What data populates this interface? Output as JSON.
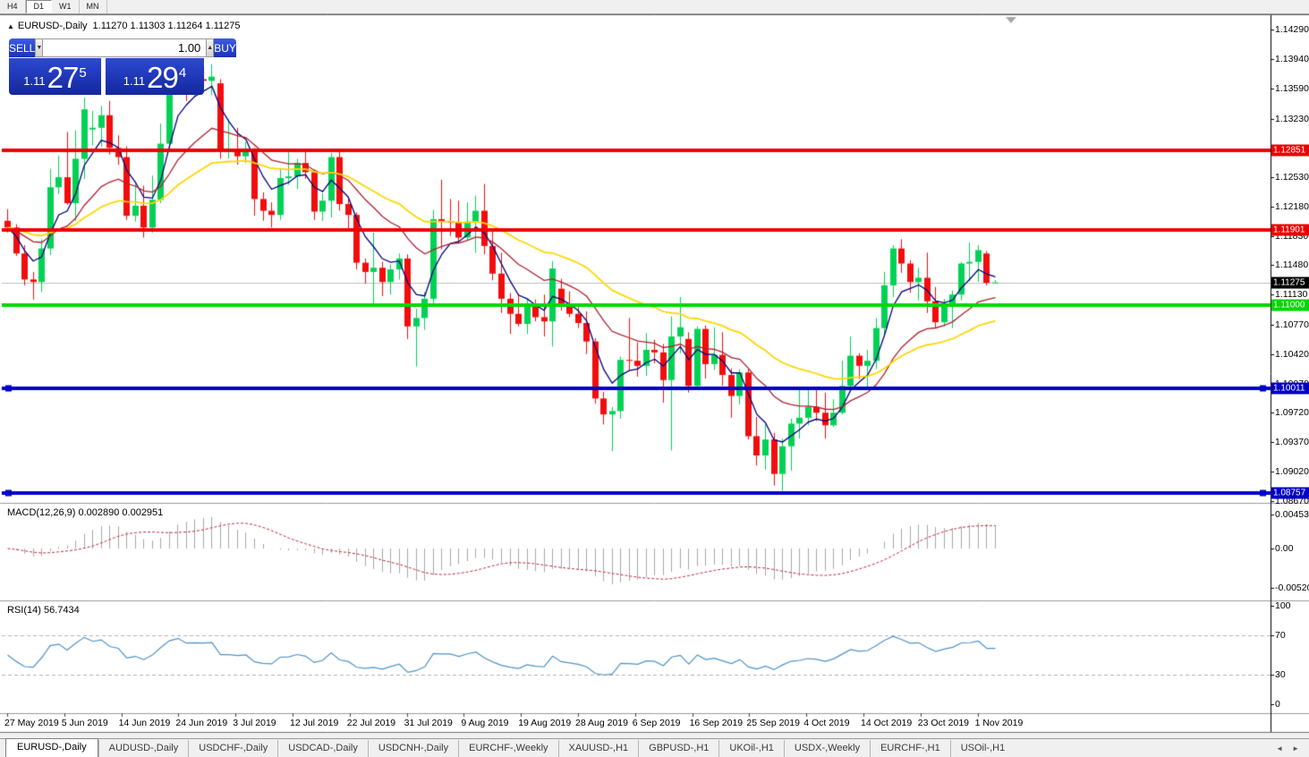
{
  "toolbar": {
    "timeframes": [
      {
        "label": "H4",
        "active": false
      },
      {
        "label": "D1",
        "active": true
      },
      {
        "label": "W1",
        "active": false
      },
      {
        "label": "MN",
        "active": false
      }
    ]
  },
  "chart": {
    "collapse_icon": "▲",
    "symbol_title": "EURUSD-,Daily",
    "ohlc_text": "1.11270 1.11303 1.11264 1.11275"
  },
  "trade_panel": {
    "sell_label": "SELL",
    "buy_label": "BUY",
    "volume": "1.00",
    "spinner_down_icon": "▼",
    "spinner_up_icon": "▲",
    "sell_prefix": "1.11",
    "sell_big": "27",
    "sell_sup": "5",
    "buy_prefix": "1.11",
    "buy_big": "29",
    "buy_sup": "4"
  },
  "price_axis": [
    "1.14290",
    "1.13940",
    "1.13590",
    "1.13230",
    "1.12530",
    "1.12180",
    "1.11830",
    "1.11480",
    "1.11130",
    "1.10770",
    "1.10420",
    "1.10070",
    "1.09720",
    "1.09370",
    "1.09020",
    "1.08670"
  ],
  "date_axis": [
    "27 May 2019",
    "5 Jun 2019",
    "14 Jun 2019",
    "24 Jun 2019",
    "3 Jul 2019",
    "12 Jul 2019",
    "22 Jul 2019",
    "31 Jul 2019",
    "9 Aug 2019",
    "19 Aug 2019",
    "28 Aug 2019",
    "6 Sep 2019",
    "16 Sep 2019",
    "25 Sep 2019",
    "4 Oct 2019",
    "14 Oct 2019",
    "23 Oct 2019",
    "1 Nov 2019"
  ],
  "current_price": {
    "value": 1.11275,
    "label": "1.11275"
  },
  "macd": {
    "label": "MACD(12,26,9) 0.002890 0.002951",
    "fast": 12,
    "slow": 26,
    "signal": 9,
    "value": 0.00289,
    "signal_value": 0.002951,
    "axis": [
      "0.004536",
      "0.00",
      "-0.005205"
    ],
    "range": [
      -0.005205,
      0.004536
    ]
  },
  "rsi": {
    "label": "RSI(14) 56.7434",
    "period": 14,
    "value": 56.7434,
    "axis": [
      "100",
      "70",
      "30",
      "0"
    ],
    "levels": [
      70,
      30
    ]
  },
  "tabs": [
    "EURUSD-,Daily",
    "AUDUSD-,Daily",
    "USDCHF-,Daily",
    "USDCAD-,Daily",
    "USDCNH-,Daily",
    "EURCHF-,Weekly",
    "XAUUSD-,H1",
    "GBPUSD-,H1",
    "UKOil-,H1",
    "USDX-,Weekly",
    "EURCHF-,H1",
    "USOil-,H1"
  ],
  "active_tab": 0,
  "tab_scroll": {
    "left_icon": "◄",
    "right_icon": "►"
  },
  "colors": {
    "bull": "#00d255",
    "bear": "#f20d0d",
    "ma_fast": "#000080",
    "ma_mid": "#b02030",
    "ma_slow": "#ffd700",
    "macd_hist": "#a6a6a6",
    "macd_signal": "#c52b3a",
    "rsi_line": "#4f93c9",
    "level_red": "#ee0000",
    "level_green": "#00d800",
    "level_blue": "#0000c8",
    "price_tag_bg": "#000000",
    "current_line": "#c0c0c0"
  },
  "chart_data": {
    "type": "candlestick",
    "symbol": "EURUSD",
    "timeframe": "Daily",
    "ylim": [
      1.0862,
      1.1444
    ],
    "grid": false,
    "shift_marker_x": 1130,
    "current_bar": {
      "open": 1.1127,
      "high": 1.11303,
      "low": 1.11264,
      "close": 1.11275
    },
    "levels": [
      {
        "price": 1.12851,
        "label": "1.12851",
        "color": "#ee0000",
        "width": 4,
        "handles": false
      },
      {
        "price": 1.11901,
        "label": "1.11901",
        "color": "#ee0000",
        "width": 4,
        "handles": false
      },
      {
        "price": 1.11,
        "label": "1.11000",
        "color": "#00d800",
        "width": 4,
        "handles": false
      },
      {
        "price": 1.10011,
        "label": "1.10011",
        "color": "#0000c8",
        "width": 4,
        "handles": true
      },
      {
        "price": 1.08757,
        "label": "1.08757",
        "color": "#0000c8",
        "width": 4,
        "handles": true
      }
    ],
    "moving_averages": [
      {
        "period": 5,
        "color": "#000080",
        "width": 1.3
      },
      {
        "period": 16,
        "color": "#b02030",
        "width": 1.3
      },
      {
        "period": 34,
        "color": "#ffd700",
        "width": 1.8
      }
    ],
    "indicators": {
      "macd": {
        "fast": 12,
        "slow": 26,
        "signal": 9,
        "current": [
          0.00289,
          0.002951
        ]
      },
      "rsi": {
        "period": 14,
        "current": 56.7434,
        "levels": [
          70,
          30
        ]
      }
    },
    "candles": [
      [
        "2019.05.27",
        1.1201,
        1.1215,
        1.1187,
        1.1193
      ],
      [
        "2019.05.28",
        1.1193,
        1.1197,
        1.1159,
        1.1162
      ],
      [
        "2019.05.29",
        1.1162,
        1.1172,
        1.1124,
        1.1131
      ],
      [
        "2019.05.30",
        1.1131,
        1.114,
        1.1107,
        1.1128
      ],
      [
        "2019.05.31",
        1.1128,
        1.1179,
        1.1116,
        1.1168
      ],
      [
        "2019.06.03",
        1.1168,
        1.1263,
        1.116,
        1.1241
      ],
      [
        "2019.06.04",
        1.1241,
        1.1279,
        1.1233,
        1.1253
      ],
      [
        "2019.06.05",
        1.1253,
        1.1307,
        1.122,
        1.1222
      ],
      [
        "2019.06.06",
        1.1222,
        1.1309,
        1.1201,
        1.1275
      ],
      [
        "2019.06.07",
        1.1275,
        1.1348,
        1.1251,
        1.1334
      ],
      [
        "2019.06.10",
        1.131,
        1.1332,
        1.1291,
        1.1312
      ],
      [
        "2019.06.11",
        1.1312,
        1.1338,
        1.1289,
        1.1327
      ],
      [
        "2019.06.12",
        1.1327,
        1.1344,
        1.128,
        1.1288
      ],
      [
        "2019.06.13",
        1.1288,
        1.1303,
        1.1268,
        1.1277
      ],
      [
        "2019.06.14",
        1.1277,
        1.129,
        1.1202,
        1.1207
      ],
      [
        "2019.06.17",
        1.1207,
        1.1248,
        1.12,
        1.1219
      ],
      [
        "2019.06.18",
        1.1219,
        1.1243,
        1.1181,
        1.1193
      ],
      [
        "2019.06.19",
        1.1193,
        1.1255,
        1.1187,
        1.1226
      ],
      [
        "2019.06.20",
        1.1226,
        1.1317,
        1.1222,
        1.1293
      ],
      [
        "2019.06.21",
        1.1293,
        1.1378,
        1.1285,
        1.1369
      ],
      [
        "2019.06.24",
        1.1369,
        1.1404,
        1.1362,
        1.1399
      ],
      [
        "2019.06.25",
        1.1399,
        1.1412,
        1.1344,
        1.1366
      ],
      [
        "2019.06.26",
        1.1366,
        1.138,
        1.135,
        1.137
      ],
      [
        "2019.06.27",
        1.137,
        1.1385,
        1.136,
        1.1368
      ],
      [
        "2019.06.28",
        1.1368,
        1.1388,
        1.1351,
        1.1373
      ],
      [
        "2019.07.01",
        1.1365,
        1.137,
        1.1275,
        1.1285
      ],
      [
        "2019.07.02",
        1.1285,
        1.1322,
        1.1275,
        1.1286
      ],
      [
        "2019.07.03",
        1.1286,
        1.1312,
        1.1268,
        1.1278
      ],
      [
        "2019.07.04",
        1.1278,
        1.1295,
        1.127,
        1.1283
      ],
      [
        "2019.07.05",
        1.1283,
        1.1288,
        1.1207,
        1.1227
      ],
      [
        "2019.07.08",
        1.1227,
        1.1235,
        1.1201,
        1.1213
      ],
      [
        "2019.07.09",
        1.1213,
        1.1223,
        1.1193,
        1.1208
      ],
      [
        "2019.07.10",
        1.1208,
        1.1264,
        1.1202,
        1.1252
      ],
      [
        "2019.07.11",
        1.1252,
        1.1286,
        1.1244,
        1.1254
      ],
      [
        "2019.07.12",
        1.1254,
        1.1275,
        1.1239,
        1.127
      ],
      [
        "2019.07.15",
        1.127,
        1.1285,
        1.1251,
        1.1259
      ],
      [
        "2019.07.16",
        1.1259,
        1.1262,
        1.1202,
        1.1212
      ],
      [
        "2019.07.17",
        1.1212,
        1.1234,
        1.1201,
        1.1225
      ],
      [
        "2019.07.18",
        1.1225,
        1.1282,
        1.1205,
        1.1277
      ],
      [
        "2019.07.19",
        1.1277,
        1.1283,
        1.1213,
        1.1221
      ],
      [
        "2019.07.22",
        1.1221,
        1.1227,
        1.1192,
        1.1208
      ],
      [
        "2019.07.23",
        1.1208,
        1.1211,
        1.1143,
        1.1151
      ],
      [
        "2019.07.24",
        1.1151,
        1.1156,
        1.1126,
        1.114
      ],
      [
        "2019.07.25",
        1.114,
        1.1187,
        1.1101,
        1.1145
      ],
      [
        "2019.07.26",
        1.1145,
        1.1152,
        1.1111,
        1.1128
      ],
      [
        "2019.07.29",
        1.1128,
        1.1149,
        1.1113,
        1.1143
      ],
      [
        "2019.07.30",
        1.1143,
        1.1162,
        1.1131,
        1.1156
      ],
      [
        "2019.07.31",
        1.1156,
        1.1161,
        1.106,
        1.1075
      ],
      [
        "2019.08.01",
        1.1075,
        1.1096,
        1.1027,
        1.1085
      ],
      [
        "2019.08.02",
        1.1085,
        1.1116,
        1.1071,
        1.1108
      ],
      [
        "2019.08.05",
        1.1108,
        1.1214,
        1.1101,
        1.1203
      ],
      [
        "2019.08.06",
        1.1203,
        1.125,
        1.1167,
        1.12
      ],
      [
        "2019.08.07",
        1.12,
        1.1227,
        1.1183,
        1.1199
      ],
      [
        "2019.08.08",
        1.1199,
        1.1225,
        1.1174,
        1.1181
      ],
      [
        "2019.08.09",
        1.1181,
        1.1223,
        1.1178,
        1.12
      ],
      [
        "2019.08.12",
        1.12,
        1.1231,
        1.1163,
        1.1213
      ],
      [
        "2019.08.13",
        1.1213,
        1.1245,
        1.1161,
        1.1171
      ],
      [
        "2019.08.14",
        1.1171,
        1.1192,
        1.113,
        1.1138
      ],
      [
        "2019.08.15",
        1.1138,
        1.1163,
        1.1091,
        1.1108
      ],
      [
        "2019.08.16",
        1.1108,
        1.1115,
        1.1066,
        1.109
      ],
      [
        "2019.08.19",
        1.109,
        1.1114,
        1.1075,
        1.1078
      ],
      [
        "2019.08.20",
        1.1078,
        1.1108,
        1.1066,
        1.1099
      ],
      [
        "2019.08.21",
        1.1099,
        1.1107,
        1.1081,
        1.1086
      ],
      [
        "2019.08.22",
        1.1086,
        1.1113,
        1.1063,
        1.1081
      ],
      [
        "2019.08.23",
        1.1081,
        1.1153,
        1.1051,
        1.1144
      ],
      [
        "2019.08.26",
        1.112,
        1.1132,
        1.1094,
        1.1101
      ],
      [
        "2019.08.27",
        1.1101,
        1.1117,
        1.1086,
        1.109
      ],
      [
        "2019.08.28",
        1.109,
        1.1098,
        1.1073,
        1.1079
      ],
      [
        "2019.08.29",
        1.1079,
        1.1093,
        1.1042,
        1.1057
      ],
      [
        "2019.08.30",
        1.1057,
        1.1061,
        1.0983,
        1.0989
      ],
      [
        "2019.09.02",
        1.0989,
        1.0997,
        1.0958,
        1.097
      ],
      [
        "2019.09.03",
        1.097,
        1.0979,
        1.0926,
        1.0974
      ],
      [
        "2019.09.04",
        1.0974,
        1.1039,
        1.0965,
        1.1035
      ],
      [
        "2019.09.05",
        1.1035,
        1.1085,
        1.1022,
        1.1034
      ],
      [
        "2019.09.06",
        1.1034,
        1.1056,
        1.1015,
        1.1028
      ],
      [
        "2019.09.09",
        1.1028,
        1.1067,
        1.1016,
        1.1047
      ],
      [
        "2019.09.10",
        1.1047,
        1.1059,
        1.1031,
        1.1044
      ],
      [
        "2019.09.11",
        1.1044,
        1.1054,
        1.0984,
        1.1011
      ],
      [
        "2019.09.12",
        1.1011,
        1.1087,
        1.0927,
        1.1063
      ],
      [
        "2019.09.13",
        1.1063,
        1.111,
        1.1043,
        1.1074
      ],
      [
        "2019.09.16",
        1.106,
        1.1068,
        1.0996,
        1.1004
      ],
      [
        "2019.09.17",
        1.1004,
        1.1075,
        1.1,
        1.1072
      ],
      [
        "2019.09.18",
        1.1072,
        1.1076,
        1.1013,
        1.103
      ],
      [
        "2019.09.19",
        1.103,
        1.1074,
        1.1023,
        1.1041
      ],
      [
        "2019.09.20",
        1.1041,
        1.1068,
        1.1004,
        1.1017
      ],
      [
        "2019.09.23",
        1.1017,
        1.1025,
        1.0966,
        1.0992
      ],
      [
        "2019.09.24",
        1.0992,
        1.1024,
        1.0982,
        1.102
      ],
      [
        "2019.09.25",
        1.102,
        1.1024,
        1.094,
        1.0944
      ],
      [
        "2019.09.26",
        1.0944,
        1.0967,
        1.0909,
        1.0921
      ],
      [
        "2019.09.27",
        1.0921,
        1.0958,
        1.0904,
        1.094
      ],
      [
        "2019.09.30",
        1.094,
        1.0948,
        1.0885,
        1.0899
      ],
      [
        "2019.10.01",
        1.0899,
        1.0941,
        1.0879,
        1.0932
      ],
      [
        "2019.10.02",
        1.0932,
        1.0965,
        1.0903,
        1.0959
      ],
      [
        "2019.10.03",
        1.0959,
        1.0999,
        1.0941,
        1.0966
      ],
      [
        "2019.10.04",
        1.0966,
        1.0999,
        1.0957,
        1.0979
      ],
      [
        "2019.10.07",
        1.0979,
        1.1,
        1.0962,
        1.0972
      ],
      [
        "2019.10.08",
        1.0972,
        1.0996,
        1.0941,
        1.0957
      ],
      [
        "2019.10.09",
        1.0957,
        1.0988,
        1.0955,
        1.0972
      ],
      [
        "2019.10.10",
        1.0972,
        1.1034,
        1.097,
        1.1004
      ],
      [
        "2019.10.11",
        1.1004,
        1.1063,
        1.1002,
        1.104
      ],
      [
        "2019.10.14",
        1.104,
        1.1043,
        1.1012,
        1.1028
      ],
      [
        "2019.10.15",
        1.1028,
        1.1047,
        1.1001,
        1.1034
      ],
      [
        "2019.10.16",
        1.1034,
        1.1085,
        1.1024,
        1.1073
      ],
      [
        "2019.10.17",
        1.1073,
        1.114,
        1.1064,
        1.1124
      ],
      [
        "2019.10.18",
        1.1124,
        1.1172,
        1.111,
        1.1168
      ],
      [
        "2019.10.21",
        1.1168,
        1.1179,
        1.1139,
        1.115
      ],
      [
        "2019.10.22",
        1.115,
        1.1154,
        1.1115,
        1.1128
      ],
      [
        "2019.10.23",
        1.1128,
        1.1145,
        1.1106,
        1.1133
      ],
      [
        "2019.10.24",
        1.1133,
        1.1163,
        1.1091,
        1.1105
      ],
      [
        "2019.10.25",
        1.1105,
        1.1122,
        1.1073,
        1.108
      ],
      [
        "2019.10.28",
        1.108,
        1.1108,
        1.1075,
        1.1099
      ],
      [
        "2019.10.29",
        1.1099,
        1.1118,
        1.1073,
        1.1113
      ],
      [
        "2019.10.30",
        1.1113,
        1.1152,
        1.1106,
        1.115
      ],
      [
        "2019.10.31",
        1.115,
        1.1175,
        1.1129,
        1.1152
      ],
      [
        "2019.11.01",
        1.1152,
        1.1172,
        1.1128,
        1.1166
      ],
      [
        "2019.11.04",
        1.1162,
        1.1165,
        1.1124,
        1.1127
      ],
      [
        "2019.11.05",
        1.1127,
        1.11303,
        1.11264,
        1.11275
      ]
    ]
  }
}
